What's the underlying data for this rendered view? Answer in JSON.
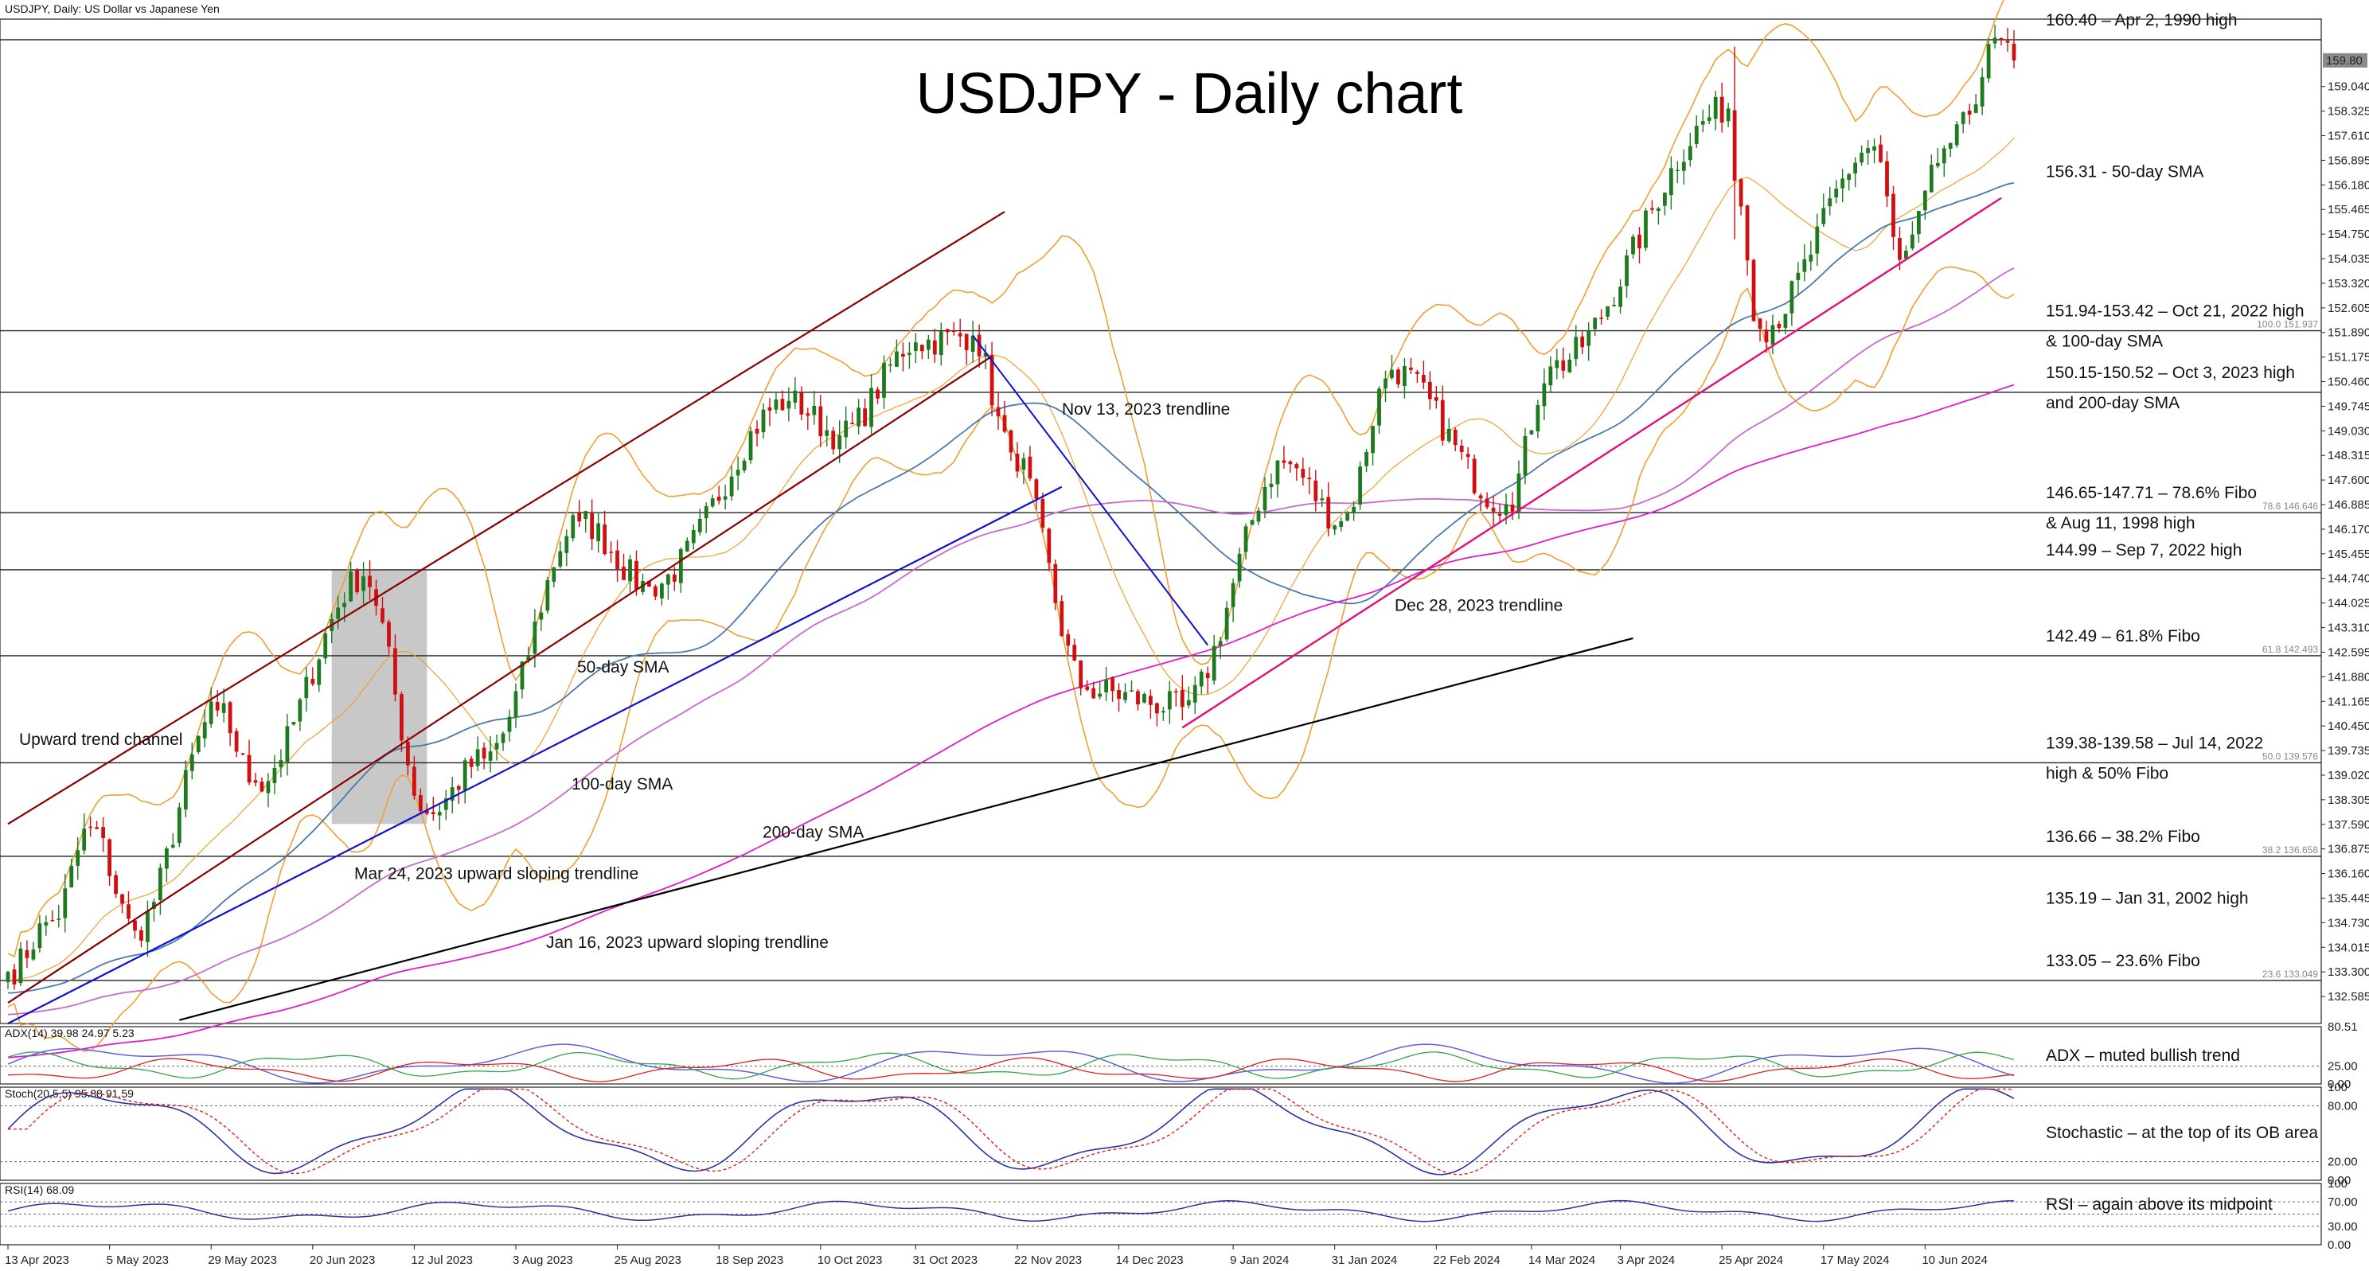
{
  "header": {
    "symbol": "USDJPY, Daily:  US Dollar vs Japanese Yen"
  },
  "chart_data": {
    "type": "candlestick",
    "title": "USDJPY - Daily chart",
    "ylim": [
      131.8,
      161.0
    ],
    "price_ticks": [
      "159.040",
      "158.325",
      "157.610",
      "156.895",
      "156.180",
      "155.465",
      "154.750",
      "154.035",
      "153.320",
      "152.605",
      "151.890",
      "151.175",
      "150.460",
      "149.745",
      "149.030",
      "148.315",
      "147.600",
      "146.885",
      "146.170",
      "145.455",
      "144.740",
      "144.025",
      "143.310",
      "142.595",
      "141.880",
      "141.165",
      "140.450",
      "139.735",
      "139.020",
      "138.305",
      "137.590",
      "136.875",
      "136.160",
      "135.445",
      "134.730",
      "134.015",
      "133.300",
      "132.585"
    ],
    "current_price_label": "159.80",
    "x_tick_labels": [
      "13 Apr 2023",
      "5 May 2023",
      "29 May 2023",
      "20 Jun 2023",
      "12 Jul 2023",
      "3 Aug 2023",
      "25 Aug 2023",
      "18 Sep 2023",
      "10 Oct 2023",
      "31 Oct 2023",
      "22 Nov 2023",
      "14 Dec 2023",
      "9 Jan 2024",
      "31 Jan 2024",
      "22 Feb 2024",
      "14 Mar 2024",
      "3 Apr 2024",
      "25 Apr 2024",
      "17 May 2024",
      "10 Jun 2024"
    ],
    "anchors": [
      {
        "date": "13 Apr 2023",
        "price": 133.3
      },
      {
        "date": "24 Apr 2023",
        "price": 134.8
      },
      {
        "date": "2 May 2023",
        "price": 137.5
      },
      {
        "date": "11 May 2023",
        "price": 134.5
      },
      {
        "date": "30 May 2023",
        "price": 140.9
      },
      {
        "date": "7 Jun 2023",
        "price": 138.8
      },
      {
        "date": "30 Jun 2023",
        "price": 144.8
      },
      {
        "date": "14 Jul 2023",
        "price": 137.9
      },
      {
        "date": "27 Jul 2023",
        "price": 139.5
      },
      {
        "date": "17 Aug 2023",
        "price": 146.4
      },
      {
        "date": "1 Sep 2023",
        "price": 144.5
      },
      {
        "date": "3 Oct 2023",
        "price": 149.9
      },
      {
        "date": "13 Oct 2023",
        "price": 148.9
      },
      {
        "date": "31 Oct 2023",
        "price": 151.6
      },
      {
        "date": "13 Nov 2023",
        "price": 151.8
      },
      {
        "date": "21 Nov 2023",
        "price": 148.4
      },
      {
        "date": "7 Dec 2023",
        "price": 141.5
      },
      {
        "date": "28 Dec 2023",
        "price": 141.0
      },
      {
        "date": "19 Jan 2024",
        "price": 148.1
      },
      {
        "date": "1 Feb 2024",
        "price": 146.4
      },
      {
        "date": "13 Feb 2024",
        "price": 150.8
      },
      {
        "date": "8 Mar 2024",
        "price": 146.9
      },
      {
        "date": "19 Mar 2024",
        "price": 150.9
      },
      {
        "date": "26 Apr 2024",
        "price": 158.4
      },
      {
        "date": "29 Apr 2024",
        "price": 156.3
      },
      {
        "date": "3 May 2024",
        "price": 152.0
      },
      {
        "date": "29 May 2024",
        "price": 157.3
      },
      {
        "date": "4 Jun 2024",
        "price": 154.0
      },
      {
        "date": "14 Jun 2024",
        "price": 157.4
      },
      {
        "date": "26 Jun 2024",
        "price": 160.4
      },
      {
        "date": "28 Jun 2024",
        "price": 159.8
      }
    ],
    "sma_labels": {
      "sma50": "50-day SMA",
      "sma100": "100-day SMA",
      "sma200": "200-day SMA"
    },
    "channel_label": "Upward trend channel",
    "trendline_labels": {
      "mar24": "Mar 24, 2023 upward sloping trendline",
      "jan16": "Jan 16, 2023 upward sloping trendline",
      "nov13": "Nov 13, 2023 trendline",
      "dec28": "Dec 28, 2023 trendline"
    },
    "levels": [
      {
        "price": 160.4,
        "text": "160.40 – Apr 2, 1990 high",
        "line": true
      },
      {
        "price": 156.31,
        "text": "156.31 - 50-day SMA",
        "line": false
      },
      {
        "price": 151.94,
        "text": "151.94-153.42 – Oct 21, 2022 high",
        "text2": "& 100-day SMA",
        "line": true,
        "fibo": "100.0 151.937"
      },
      {
        "price": 150.15,
        "text": "150.15-150.52 – Oct 3, 2023 high",
        "text2": "and 200-day SMA",
        "line": true
      },
      {
        "price": 146.65,
        "text": "146.65-147.71 – 78.6% Fibo",
        "text2": "& Aug 11, 1998 high",
        "line": true,
        "fibo": "78.6 146.646"
      },
      {
        "price": 144.99,
        "text": "144.99 – Sep 7, 2022 high",
        "line": true
      },
      {
        "price": 142.49,
        "text": "142.49 – 61.8% Fibo",
        "line": true,
        "fibo": "61.8 142.493"
      },
      {
        "price": 139.38,
        "text": "139.38-139.58 – Jul 14, 2022",
        "text2": "high & 50% Fibo",
        "line": true,
        "fibo": "50.0 139.576"
      },
      {
        "price": 136.66,
        "text": "136.66 – 38.2% Fibo",
        "line": true,
        "fibo": "38.2 136.658"
      },
      {
        "price": 135.19,
        "text": "135.19 – Jan 31, 2002 high",
        "line": false
      },
      {
        "price": 133.05,
        "text": "133.05 – 23.6% Fibo",
        "line": true,
        "fibo": "23.6 133.049"
      }
    ],
    "indicators": {
      "adx": {
        "header": "ADX(14) 39.98 24.97 5.23",
        "ticks": [
          "80.51",
          "25.00",
          "0.00"
        ],
        "note": "ADX – muted bullish trend"
      },
      "stoch": {
        "header": "Stoch(20,5,5) 95.88 91.59",
        "ticks": [
          "100",
          "80.00",
          "20.00",
          "0.00"
        ],
        "note": "Stochastic – at the top of its OB area"
      },
      "rsi": {
        "header": "RSI(14) 68.09",
        "ticks": [
          "100",
          "70.00",
          "30.00",
          "0.00"
        ],
        "note": "RSI – again above its midpoint"
      }
    },
    "colors": {
      "up": "#1e7a1e",
      "down": "#d01010",
      "sma50": "#4a7aad",
      "sma100": "#c86ad0",
      "sma200": "#e01ec8",
      "bollinger": "#f0a030",
      "channel": "#8b0000",
      "mar24": "#1010d0",
      "jan16": "#000000",
      "dec28": "#e0107a",
      "adx": "#6060e0",
      "plusdi": "#2ea84a",
      "minusdi": "#e02020",
      "stoch_k": "#3030a0",
      "stoch_d": "#e02020",
      "rsi": "#3030a0"
    }
  }
}
